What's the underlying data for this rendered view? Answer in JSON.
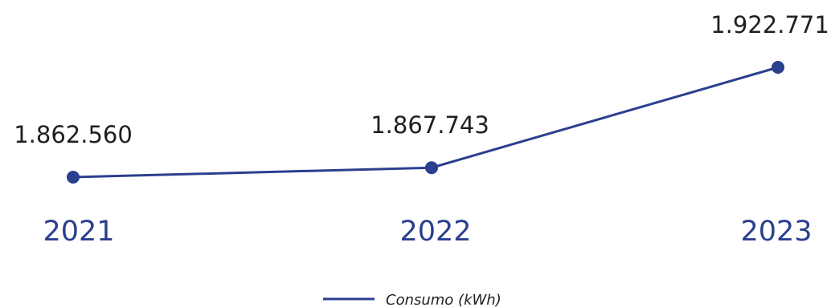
{
  "chart_data": {
    "type": "line",
    "categories": [
      "2021",
      "2022",
      "2023"
    ],
    "series": [
      {
        "name": "Consumo (kWh)",
        "values": [
          1862560,
          1867743,
          1922771
        ],
        "labels": [
          "1.862.560",
          "1.867.743",
          "1.922.771"
        ]
      }
    ],
    "title": "",
    "xlabel": "",
    "ylabel": "",
    "grid": false,
    "legend": "bottom-center",
    "colors": {
      "series": "#2b3f8f",
      "tick_label": "#2b3f8f",
      "data_label": "#1f1f1f"
    }
  }
}
